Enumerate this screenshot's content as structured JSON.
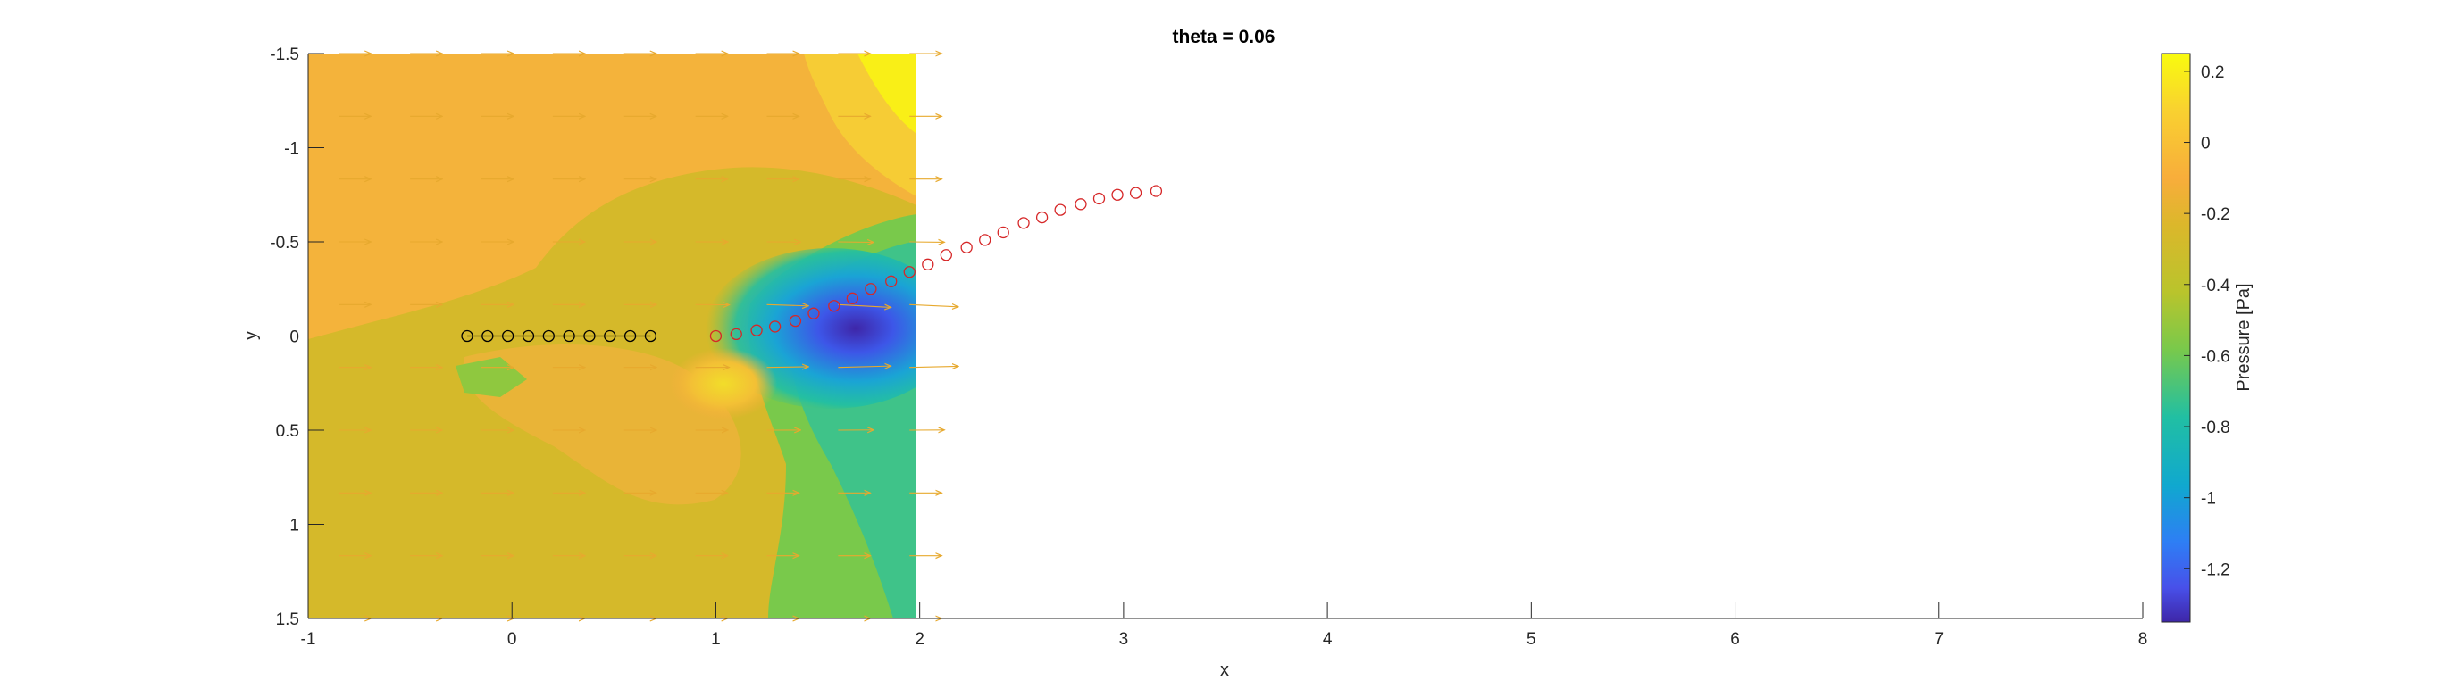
{
  "chart_data": {
    "type": "contour-quiver",
    "title": "theta = 0.06",
    "xlabel": "x",
    "ylabel": "y",
    "xlim": [
      -1,
      8
    ],
    "ylim": [
      -1.5,
      1.5
    ],
    "y_reversed": true,
    "x_ticks": [
      "-1",
      "0",
      "1",
      "2",
      "3",
      "4",
      "5",
      "6",
      "7",
      "8"
    ],
    "x_tick_values": [
      -1,
      0,
      1,
      2,
      3,
      4,
      5,
      6,
      7,
      8
    ],
    "y_ticks": [
      "-1.5",
      "-1",
      "-0.5",
      "0",
      "0.5",
      "1",
      "1.5"
    ],
    "y_tick_values": [
      -1.5,
      -1,
      -0.5,
      0,
      0.5,
      1,
      1.5
    ],
    "grid": false,
    "pressure_field_extent": {
      "x": [
        -1,
        2
      ],
      "y": [
        -1.5,
        1.5
      ]
    },
    "colorbar": {
      "label": "Pressure [Pa]",
      "range": [
        -1.35,
        0.25
      ],
      "ticks": [
        "0.2",
        "0",
        "-0.2",
        "-0.4",
        "-0.6",
        "-0.8",
        "-1",
        "-1.2"
      ],
      "tick_values": [
        0.2,
        0,
        -0.2,
        -0.4,
        -0.6,
        -0.8,
        -1,
        -1.2
      ],
      "colormap": "parula"
    },
    "series": [
      {
        "marker": "circle",
        "color": "#000000",
        "line": true,
        "x": [
          -0.22,
          -0.12,
          -0.02,
          0.08,
          0.18,
          0.28,
          0.38,
          0.48,
          0.58,
          0.68
        ],
        "y": [
          0,
          0,
          0,
          0,
          0,
          0,
          0,
          0,
          0,
          0
        ]
      },
      {
        "marker": "circle",
        "color": "#d62728",
        "line": false,
        "x": [
          1.0,
          1.1,
          1.2,
          1.29,
          1.39,
          1.48,
          1.58,
          1.67,
          1.76,
          1.86,
          1.95,
          2.04,
          2.13,
          2.23,
          2.32,
          2.41,
          2.51,
          2.6,
          2.69,
          2.79,
          2.88,
          2.97,
          3.06,
          3.16
        ],
        "y": [
          0,
          -0.01,
          -0.03,
          -0.05,
          -0.08,
          -0.12,
          -0.16,
          -0.2,
          -0.25,
          -0.29,
          -0.34,
          -0.38,
          -0.43,
          -0.47,
          -0.51,
          -0.55,
          -0.6,
          -0.63,
          -0.67,
          -0.7,
          -0.73,
          -0.75,
          -0.76,
          -0.77
        ]
      }
    ]
  }
}
